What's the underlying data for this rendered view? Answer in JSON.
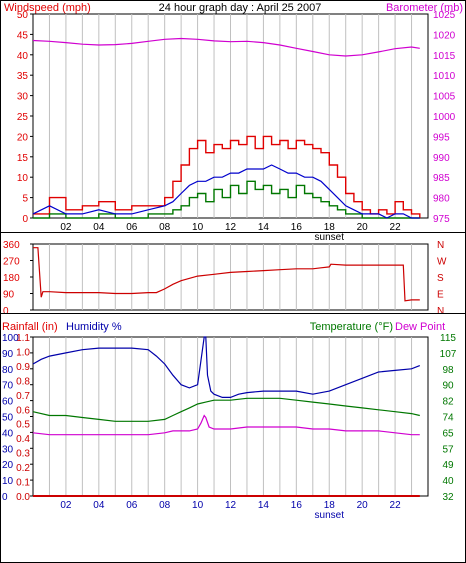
{
  "title": "24 hour graph day : April 25 2007",
  "colors": {
    "frame": "#000000",
    "grid": "#c0c0c0",
    "wind": "#e00000",
    "gust_dark": "#e00000",
    "avg_wind": "#0000cc",
    "min_wind": "#007700",
    "barometer": "#d000d0",
    "direction": "#cc0000",
    "rain": "#cc0000",
    "humidity": "#0000aa",
    "temperature": "#007700",
    "dewpoint": "#d000d0"
  },
  "chart_data": [
    {
      "type": "line",
      "name": "wind-barometer",
      "left_label": "Windspeed (mph)",
      "right_label": "Barometer (mb)",
      "x_ticks": [
        "02",
        "04",
        "06",
        "08",
        "10",
        "12",
        "14",
        "16",
        "18",
        "20",
        "22"
      ],
      "x_marker": "sunset",
      "xlim": [
        0,
        24
      ],
      "y_left_ticks": [
        0,
        5,
        10,
        15,
        20,
        25,
        30,
        35,
        40,
        45,
        50
      ],
      "ylim_left": [
        0,
        50
      ],
      "y_right_ticks": [
        975,
        980,
        985,
        990,
        995,
        1000,
        1005,
        1010,
        1015,
        1020,
        1025
      ],
      "ylim_right": [
        975,
        1025
      ],
      "series": [
        {
          "role": "barometer",
          "x": [
            0,
            1,
            2,
            3,
            4,
            5,
            6,
            7,
            8,
            9,
            10,
            11,
            12,
            13,
            14,
            15,
            16,
            17,
            18,
            19,
            20,
            21,
            22,
            23,
            23.5
          ],
          "values": [
            1018.5,
            1018.3,
            1018.0,
            1017.6,
            1017.4,
            1017.5,
            1017.8,
            1018.3,
            1018.8,
            1019.0,
            1018.8,
            1018.4,
            1018.2,
            1018.3,
            1018.0,
            1017.4,
            1016.6,
            1015.8,
            1015.0,
            1014.7,
            1015.0,
            1015.7,
            1016.5,
            1016.9,
            1016.6
          ]
        },
        {
          "role": "gust",
          "x": [
            0,
            1,
            2,
            3,
            4,
            5,
            6,
            7,
            8,
            8.5,
            9,
            9.5,
            10,
            10.5,
            11,
            11.5,
            12,
            12.5,
            13,
            13.5,
            14,
            14.5,
            15,
            15.5,
            16,
            16.5,
            17,
            17.5,
            18,
            18.5,
            19,
            19.5,
            20,
            20.5,
            21,
            21.5,
            22,
            22.5,
            23,
            23.5
          ],
          "values": [
            1,
            5,
            2,
            3,
            4,
            2,
            3,
            3,
            5,
            9,
            13,
            17,
            19,
            16,
            18,
            17,
            19,
            18,
            20,
            17,
            20,
            18,
            19,
            17,
            19,
            18,
            17,
            16,
            13,
            10,
            6,
            4,
            2,
            1,
            2,
            1,
            4,
            2,
            1,
            0
          ]
        },
        {
          "role": "average",
          "x": [
            0,
            1,
            2,
            3,
            4,
            5,
            6,
            7,
            8,
            8.5,
            9,
            9.5,
            10,
            10.5,
            11,
            11.5,
            12,
            12.5,
            13,
            13.5,
            14,
            14.5,
            15,
            15.5,
            16,
            16.5,
            17,
            17.5,
            18,
            18.5,
            19,
            19.5,
            20,
            20.5,
            21,
            21.5,
            22,
            22.5,
            23,
            23.5
          ],
          "values": [
            1,
            3,
            1,
            1,
            2,
            1,
            1,
            2,
            3,
            4,
            6,
            8,
            9,
            9,
            10,
            10,
            11,
            11,
            12,
            12,
            12,
            13,
            12,
            11,
            11,
            10,
            10,
            9,
            7,
            5,
            3,
            2,
            1,
            1,
            1,
            0,
            1,
            1,
            0,
            0
          ]
        },
        {
          "role": "minimum",
          "x": [
            0,
            1,
            2,
            3,
            4,
            5,
            6,
            7,
            8,
            8.5,
            9,
            9.5,
            10,
            10.5,
            11,
            11.5,
            12,
            12.5,
            13,
            13.5,
            14,
            14.5,
            15,
            15.5,
            16,
            16.5,
            17,
            17.5,
            18,
            18.5,
            19,
            19.5,
            20,
            20.5,
            21,
            21.5,
            22,
            22.5,
            23,
            23.5
          ],
          "values": [
            0,
            1,
            0,
            0,
            1,
            0,
            0,
            1,
            1,
            2,
            3,
            5,
            6,
            4,
            7,
            5,
            8,
            6,
            9,
            7,
            8,
            6,
            7,
            5,
            8,
            6,
            5,
            4,
            3,
            2,
            1,
            1,
            0,
            0,
            0,
            0,
            0,
            0,
            0,
            0
          ]
        }
      ]
    },
    {
      "type": "line",
      "name": "wind-direction",
      "y_left_ticks": [
        0,
        90,
        180,
        270,
        360
      ],
      "ylim_left": [
        0,
        360
      ],
      "y_right_ticks": [
        "N",
        "E",
        "S",
        "W",
        "N"
      ],
      "xlim": [
        0,
        24
      ],
      "series": [
        {
          "role": "direction",
          "x": [
            0,
            0.3,
            0.5,
            0.6,
            1,
            2,
            3,
            4,
            5,
            6,
            7,
            7.5,
            8,
            8.5,
            9,
            10,
            11,
            12,
            13,
            14,
            15,
            16,
            17,
            17.5,
            18,
            18.1,
            19,
            20,
            21,
            22,
            22.5,
            22.6,
            23,
            23.5
          ],
          "values": [
            340,
            340,
            70,
            100,
            100,
            95,
            95,
            95,
            90,
            90,
            95,
            95,
            115,
            140,
            160,
            185,
            195,
            205,
            210,
            215,
            220,
            225,
            225,
            230,
            235,
            250,
            245,
            245,
            245,
            245,
            245,
            50,
            55,
            55
          ]
        }
      ]
    },
    {
      "type": "line",
      "name": "rain-humidity-temperature",
      "left_label": "Rainfall (in)",
      "humidity_label": "Humidity %",
      "right_label": "Temperature (°F)",
      "dew_label": "Dew Point",
      "x_ticks": [
        "02",
        "04",
        "06",
        "08",
        "10",
        "12",
        "14",
        "16",
        "18",
        "20",
        "22"
      ],
      "x_marker": "sunset",
      "xlim": [
        0,
        24
      ],
      "y_rain_ticks": [
        "0.0",
        "0.1",
        "0.2",
        "0.3",
        "0.4",
        "0.5",
        "0.6",
        "0.7",
        "0.8",
        "0.9",
        "1.0",
        "1.1"
      ],
      "y_humidity_ticks": [
        0,
        10,
        20,
        30,
        40,
        50,
        60,
        70,
        80,
        90,
        100
      ],
      "ylim_humidity": [
        0,
        100
      ],
      "y_temp_ticks": [
        32,
        40,
        49,
        57,
        65,
        74,
        82,
        90,
        98,
        107,
        115
      ],
      "ylim_temp": [
        32,
        115
      ],
      "series": [
        {
          "role": "rain",
          "x": [
            0,
            23.5
          ],
          "values": [
            0,
            0
          ]
        },
        {
          "role": "humidity",
          "x": [
            0,
            0.5,
            1,
            2,
            3,
            4,
            5,
            6,
            7,
            7.5,
            8,
            8.5,
            9,
            9.5,
            10,
            10.2,
            10.4,
            10.5,
            10.6,
            10.8,
            11,
            11.5,
            12,
            12.5,
            13,
            14,
            15,
            16,
            17,
            18,
            19,
            20,
            21,
            22,
            23,
            23.5
          ],
          "values": [
            83,
            86,
            88,
            90,
            92,
            93,
            93,
            93,
            92,
            88,
            83,
            76,
            70,
            68,
            70,
            85,
            100,
            100,
            76,
            66,
            64,
            62,
            62,
            64,
            65,
            66,
            66,
            66,
            64,
            66,
            70,
            74,
            78,
            79,
            80,
            82
          ]
        },
        {
          "role": "temperature",
          "x": [
            0,
            1,
            2,
            3,
            4,
            5,
            6,
            7,
            8,
            8.5,
            9,
            9.5,
            10,
            10.5,
            11,
            12,
            13,
            14,
            15,
            16,
            17,
            18,
            19,
            20,
            21,
            22,
            23,
            23.5
          ],
          "values": [
            76,
            74,
            74,
            73,
            72,
            71,
            71,
            71,
            72,
            74,
            76,
            78,
            80,
            81,
            82,
            82,
            83,
            83,
            83,
            82,
            81,
            80,
            79,
            78,
            77,
            76,
            75,
            74
          ]
        },
        {
          "role": "dewpoint",
          "x": [
            0,
            1,
            2,
            3,
            4,
            5,
            6,
            7,
            8,
            8.5,
            9,
            9.5,
            10,
            10.2,
            10.4,
            10.5,
            10.7,
            11,
            12,
            13,
            14,
            15,
            16,
            17,
            18,
            19,
            20,
            21,
            22,
            23,
            23.5
          ],
          "values": [
            65,
            64,
            64,
            64,
            64,
            64,
            64,
            64,
            65,
            66,
            66,
            66,
            67,
            70,
            74,
            73,
            68,
            67,
            67,
            68,
            68,
            68,
            68,
            67,
            67,
            66,
            66,
            66,
            65,
            64,
            64
          ]
        }
      ]
    }
  ]
}
